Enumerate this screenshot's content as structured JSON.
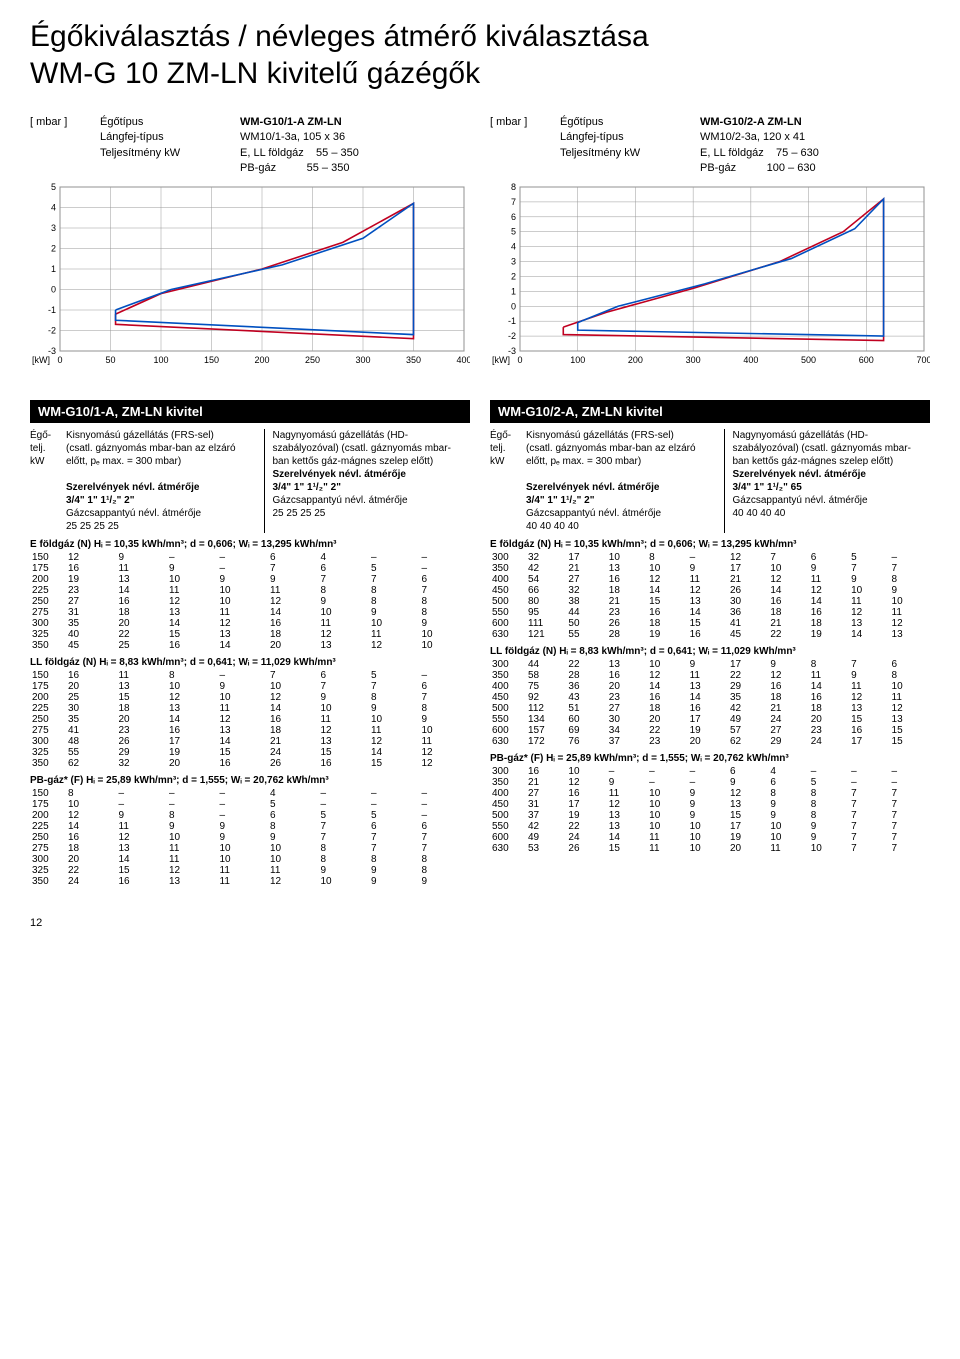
{
  "title_line1": "Égőkiválasztás / névleges átmérő kiválasztása",
  "title_line2": "WM-G 10 ZM-LN kivitelű gázégők",
  "page_number": "12",
  "chart_left": {
    "unit": "[ mbar ]",
    "labels": {
      "burner_type_label": "Égőtípus",
      "burner_type": "WM-G10/1-A ZM-LN",
      "flame_head_label": "Lángfej-típus",
      "flame_head": "WM10/1-3a, 105 x 36",
      "perf_label": "Teljesítmény kW",
      "fuel1_label": "E, LL földgáz",
      "fuel1_range": "55 – 350",
      "fuel2_label": "PB-gáz",
      "fuel2_range": "55 – 350"
    },
    "axes": {
      "y_min": -3,
      "y_max": 5,
      "y_ticks": [
        -3,
        -2,
        -1,
        0,
        1,
        2,
        3,
        4,
        5
      ],
      "x_min": 0,
      "x_max": 400,
      "x_ticks": [
        0,
        50,
        100,
        150,
        200,
        250,
        300,
        350,
        400
      ],
      "x_label": "[kW]"
    },
    "colors": {
      "curve1": "#c00020",
      "curve2": "#0050c0",
      "grid": "#999999",
      "border": "#888888"
    },
    "series": {
      "red": [
        [
          55,
          -1.2
        ],
        [
          100,
          -0.2
        ],
        [
          200,
          1.0
        ],
        [
          280,
          2.3
        ],
        [
          350,
          4.2
        ],
        [
          350,
          -2.4
        ],
        [
          55,
          -1.7
        ],
        [
          55,
          -1.2
        ]
      ],
      "blue": [
        [
          55,
          -1.0
        ],
        [
          110,
          0.0
        ],
        [
          220,
          1.2
        ],
        [
          300,
          2.5
        ],
        [
          350,
          4.2
        ],
        [
          350,
          -2.2
        ],
        [
          55,
          -1.5
        ],
        [
          55,
          -1.0
        ]
      ]
    }
  },
  "chart_right": {
    "unit": "[ mbar ]",
    "labels": {
      "burner_type_label": "Égőtípus",
      "burner_type": "WM-G10/2-A ZM-LN",
      "flame_head_label": "Lángfej-típus",
      "flame_head": "WM10/2-3a, 120 x 41",
      "perf_label": "Teljesítmény kW",
      "fuel1_label": "E, LL földgáz",
      "fuel1_range": "75 – 630",
      "fuel2_label": "PB-gáz",
      "fuel2_range": "100 – 630"
    },
    "axes": {
      "y_min": -3,
      "y_max": 8,
      "y_ticks": [
        -3,
        -2,
        -1,
        0,
        1,
        2,
        3,
        4,
        5,
        6,
        7,
        8
      ],
      "x_min": 0,
      "x_max": 700,
      "x_ticks": [
        0,
        100,
        200,
        300,
        400,
        500,
        600,
        700
      ],
      "x_label": "[kW]"
    },
    "colors": {
      "curve1": "#c00020",
      "curve2": "#0050c0",
      "grid": "#999999",
      "border": "#888888"
    },
    "series": {
      "red": [
        [
          75,
          -1.4
        ],
        [
          150,
          -0.4
        ],
        [
          300,
          1.2
        ],
        [
          450,
          3.0
        ],
        [
          560,
          5.0
        ],
        [
          630,
          7.2
        ],
        [
          630,
          -2.3
        ],
        [
          75,
          -1.9
        ],
        [
          75,
          -1.4
        ]
      ],
      "blue": [
        [
          100,
          -1.1
        ],
        [
          170,
          0.0
        ],
        [
          320,
          1.5
        ],
        [
          470,
          3.2
        ],
        [
          580,
          5.2
        ],
        [
          630,
          7.2
        ],
        [
          630,
          -2.0
        ],
        [
          100,
          -1.6
        ],
        [
          100,
          -1.1
        ]
      ]
    }
  },
  "panel_left": {
    "title": "WM-G10/1-A, ZM-LN kivitel",
    "header_col1_lines": [
      "Égő-",
      "telj.",
      "kW"
    ],
    "header_col2_title": "Kisnyomású gázellátás (FRS-sel)",
    "header_col2_sub": "(csatl. gáznyomás mbar-ban az elzáró előtt, pₑ max. = 300 mbar)",
    "header_col3_title": "Nagynyomású gázellátás (HD-szabályozóval) (csatl. gáznyomás mbar-ban kettős gáz-mágnes szelep előtt)",
    "size_label": "Szerelvények névl. átmérője",
    "sizes1": "3/4\" 1\" 1¹/₂\" 2\"",
    "valve_label": "Gázcsappantyú névl. átmérője",
    "valves1": "25 25 25 25",
    "sizes2": "3/4\" 1\" 1¹/₂\" 2\"",
    "valves2": "25 25 25 25",
    "sections": [
      {
        "hdr": "E földgáz (N)  Hᵢ = 10,35 kWh/mn³;  d = 0,606;  Wᵢ = 13,295 kWh/mn³",
        "rows": [
          [
            "150",
            "12",
            "9",
            "–",
            "–",
            "6",
            "4",
            "–",
            "–"
          ],
          [
            "175",
            "16",
            "11",
            "9",
            "–",
            "7",
            "6",
            "5",
            "–"
          ],
          [
            "200",
            "19",
            "13",
            "10",
            "9",
            "9",
            "7",
            "7",
            "6"
          ],
          [
            "225",
            "23",
            "14",
            "11",
            "10",
            "11",
            "8",
            "8",
            "7"
          ],
          [
            "250",
            "27",
            "16",
            "12",
            "10",
            "12",
            "9",
            "8",
            "8"
          ],
          [
            "275",
            "31",
            "18",
            "13",
            "11",
            "14",
            "10",
            "9",
            "8"
          ],
          [
            "300",
            "35",
            "20",
            "14",
            "12",
            "16",
            "11",
            "10",
            "9"
          ],
          [
            "325",
            "40",
            "22",
            "15",
            "13",
            "18",
            "12",
            "11",
            "10"
          ],
          [
            "350",
            "45",
            "25",
            "16",
            "14",
            "20",
            "13",
            "12",
            "10"
          ]
        ]
      },
      {
        "hdr": "LL földgáz (N)  Hᵢ = 8,83 kWh/mn³;  d = 0,641;  Wᵢ = 11,029 kWh/mn³",
        "rows": [
          [
            "150",
            "16",
            "11",
            "8",
            "–",
            "7",
            "6",
            "5",
            "–"
          ],
          [
            "175",
            "20",
            "13",
            "10",
            "9",
            "10",
            "7",
            "7",
            "6"
          ],
          [
            "200",
            "25",
            "15",
            "12",
            "10",
            "12",
            "9",
            "8",
            "7"
          ],
          [
            "225",
            "30",
            "18",
            "13",
            "11",
            "14",
            "10",
            "9",
            "8"
          ],
          [
            "250",
            "35",
            "20",
            "14",
            "12",
            "16",
            "11",
            "10",
            "9"
          ],
          [
            "275",
            "41",
            "23",
            "16",
            "13",
            "18",
            "12",
            "11",
            "10"
          ],
          [
            "300",
            "48",
            "26",
            "17",
            "14",
            "21",
            "13",
            "12",
            "11"
          ],
          [
            "325",
            "55",
            "29",
            "19",
            "15",
            "24",
            "15",
            "14",
            "12"
          ],
          [
            "350",
            "62",
            "32",
            "20",
            "16",
            "26",
            "16",
            "15",
            "12"
          ]
        ]
      },
      {
        "hdr": "PB-gáz* (F)  Hᵢ = 25,89 kWh/mn³;  d = 1,555;  Wᵢ = 20,762 kWh/mn³",
        "rows": [
          [
            "150",
            "8",
            "–",
            "–",
            "–",
            "4",
            "–",
            "–",
            "–"
          ],
          [
            "175",
            "10",
            "–",
            "–",
            "–",
            "5",
            "–",
            "–",
            "–"
          ],
          [
            "200",
            "12",
            "9",
            "8",
            "–",
            "6",
            "5",
            "5",
            "–"
          ],
          [
            "225",
            "14",
            "11",
            "9",
            "9",
            "8",
            "7",
            "6",
            "6"
          ],
          [
            "250",
            "16",
            "12",
            "10",
            "9",
            "9",
            "7",
            "7",
            "7"
          ],
          [
            "275",
            "18",
            "13",
            "11",
            "10",
            "10",
            "8",
            "7",
            "7"
          ],
          [
            "300",
            "20",
            "14",
            "11",
            "10",
            "10",
            "8",
            "8",
            "8"
          ],
          [
            "325",
            "22",
            "15",
            "12",
            "11",
            "11",
            "9",
            "9",
            "8"
          ],
          [
            "350",
            "24",
            "16",
            "13",
            "11",
            "12",
            "10",
            "9",
            "9"
          ]
        ]
      }
    ]
  },
  "panel_right": {
    "title": "WM-G10/2-A, ZM-LN kivitel",
    "header_col1_lines": [
      "Égő-",
      "telj.",
      "kW"
    ],
    "header_col2_title": "Kisnyomású gázellátás (FRS-sel)",
    "header_col2_sub": "(csatl. gáznyomás mbar-ban az elzáró előtt, pₑ max. = 300 mbar)",
    "header_col3_title": "Nagynyomású gázellátás (HD-szabályozóval) (csatl. gáznyomás mbar-ban kettős gáz-mágnes szelep előtt)",
    "size_label": "Szerelvények névl. átmérője",
    "sizes1": "3/4\" 1\" 1¹/₂\" 2\"",
    "valve_label": "Gázcsappantyú névl. átmérője",
    "valves1": "40 40 40 40",
    "sizes2": "3/4\" 1\" 1¹/₂\" 2\"",
    "valve_label2": "Gázcsappantyú névl. átmérője",
    "valves2": "3/4\" 1\" 1¹/₂\" 65",
    "valves2b": "40 40 40 40",
    "sections": [
      {
        "hdr": "E földgáz (N)  Hᵢ = 10,35 kWh/mn³;  d = 0,606;  Wᵢ = 13,295 kWh/mn³",
        "rows": [
          [
            "300",
            "32",
            "17",
            "10",
            "8",
            "–",
            "12",
            "7",
            "6",
            "5",
            "–"
          ],
          [
            "350",
            "42",
            "21",
            "13",
            "10",
            "9",
            "17",
            "10",
            "9",
            "7",
            "7"
          ],
          [
            "400",
            "54",
            "27",
            "16",
            "12",
            "11",
            "21",
            "12",
            "11",
            "9",
            "8"
          ],
          [
            "450",
            "66",
            "32",
            "18",
            "14",
            "12",
            "26",
            "14",
            "12",
            "10",
            "9"
          ],
          [
            "500",
            "80",
            "38",
            "21",
            "15",
            "13",
            "30",
            "16",
            "14",
            "11",
            "10"
          ],
          [
            "550",
            "95",
            "44",
            "23",
            "16",
            "14",
            "36",
            "18",
            "16",
            "12",
            "11"
          ],
          [
            "600",
            "111",
            "50",
            "26",
            "18",
            "15",
            "41",
            "21",
            "18",
            "13",
            "12"
          ],
          [
            "630",
            "121",
            "55",
            "28",
            "19",
            "16",
            "45",
            "22",
            "19",
            "14",
            "13"
          ]
        ]
      },
      {
        "hdr": "LL földgáz (N)  Hᵢ = 8,83 kWh/mn³;  d = 0,641;  Wᵢ = 11,029 kWh/mn³",
        "rows": [
          [
            "300",
            "44",
            "22",
            "13",
            "10",
            "9",
            "17",
            "9",
            "8",
            "7",
            "6"
          ],
          [
            "350",
            "58",
            "28",
            "16",
            "12",
            "11",
            "22",
            "12",
            "11",
            "9",
            "8"
          ],
          [
            "400",
            "75",
            "36",
            "20",
            "14",
            "13",
            "29",
            "16",
            "14",
            "11",
            "10"
          ],
          [
            "450",
            "92",
            "43",
            "23",
            "16",
            "14",
            "35",
            "18",
            "16",
            "12",
            "11"
          ],
          [
            "500",
            "112",
            "51",
            "27",
            "18",
            "16",
            "42",
            "21",
            "18",
            "13",
            "12"
          ],
          [
            "550",
            "134",
            "60",
            "30",
            "20",
            "17",
            "49",
            "24",
            "20",
            "15",
            "13"
          ],
          [
            "600",
            "157",
            "69",
            "34",
            "22",
            "19",
            "57",
            "27",
            "23",
            "16",
            "15"
          ],
          [
            "630",
            "172",
            "76",
            "37",
            "23",
            "20",
            "62",
            "29",
            "24",
            "17",
            "15"
          ]
        ]
      },
      {
        "hdr": "PB-gáz* (F)  Hᵢ = 25,89 kWh/mn³;  d = 1,555;  Wᵢ = 20,762 kWh/mn³",
        "rows": [
          [
            "300",
            "16",
            "10",
            "–",
            "–",
            "–",
            "6",
            "4",
            "–",
            "–",
            "–"
          ],
          [
            "350",
            "21",
            "12",
            "9",
            "–",
            "–",
            "9",
            "6",
            "5",
            "–",
            "–"
          ],
          [
            "400",
            "27",
            "16",
            "11",
            "10",
            "9",
            "12",
            "8",
            "8",
            "7",
            "7"
          ],
          [
            "450",
            "31",
            "17",
            "12",
            "10",
            "9",
            "13",
            "9",
            "8",
            "7",
            "7"
          ],
          [
            "500",
            "37",
            "19",
            "13",
            "10",
            "9",
            "15",
            "9",
            "8",
            "7",
            "7"
          ],
          [
            "550",
            "42",
            "22",
            "13",
            "10",
            "10",
            "17",
            "10",
            "9",
            "7",
            "7"
          ],
          [
            "600",
            "49",
            "24",
            "14",
            "11",
            "10",
            "19",
            "10",
            "9",
            "7",
            "7"
          ],
          [
            "630",
            "53",
            "26",
            "15",
            "11",
            "10",
            "20",
            "11",
            "10",
            "7",
            "7"
          ]
        ]
      }
    ]
  }
}
